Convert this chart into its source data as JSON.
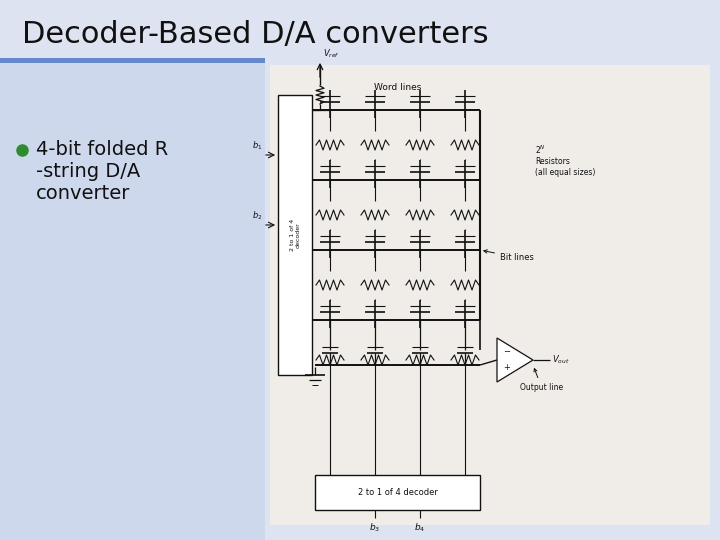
{
  "title": "Decoder-Based D/A converters",
  "title_fontsize": 22,
  "title_color": "#111111",
  "bg_color": "#dde3f0",
  "left_panel_color": "#c8d4ec",
  "bullet_text_line1": "4-bit folded R",
  "bullet_text_line2": "-string D/A",
  "bullet_text_line3": "converter",
  "bullet_color": "#2e8b2e",
  "bullet_fontsize": 14,
  "title_bar_color": "#6688cc",
  "circuit_bg": "#f0ede8",
  "line_color": "#111111",
  "text_color": "#111111"
}
